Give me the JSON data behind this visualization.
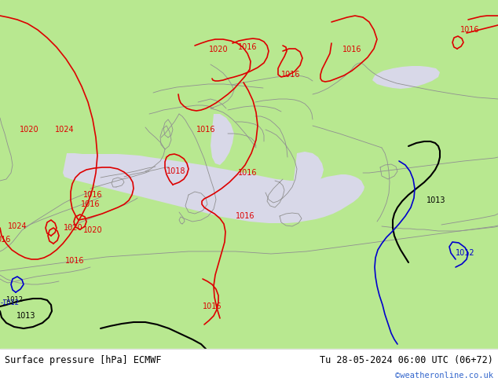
{
  "title_left": "Surface pressure [hPa] ECMWF",
  "title_right": "Tu 28-05-2024 06:00 UTC (06+72)",
  "watermark": "©weatheronline.co.uk",
  "land_color": "#b8e890",
  "sea_color": "#d8d8e8",
  "border_color": "#909090",
  "isobar_red": "#dd0000",
  "isobar_black": "#000000",
  "isobar_blue": "#0000cc",
  "label_red": "#dd0000",
  "label_black": "#000000",
  "label_blue": "#0000cc",
  "watermark_color": "#3366cc",
  "bottom_bar_color": "#ffffff",
  "figsize": [
    6.34,
    4.9
  ],
  "dpi": 100
}
